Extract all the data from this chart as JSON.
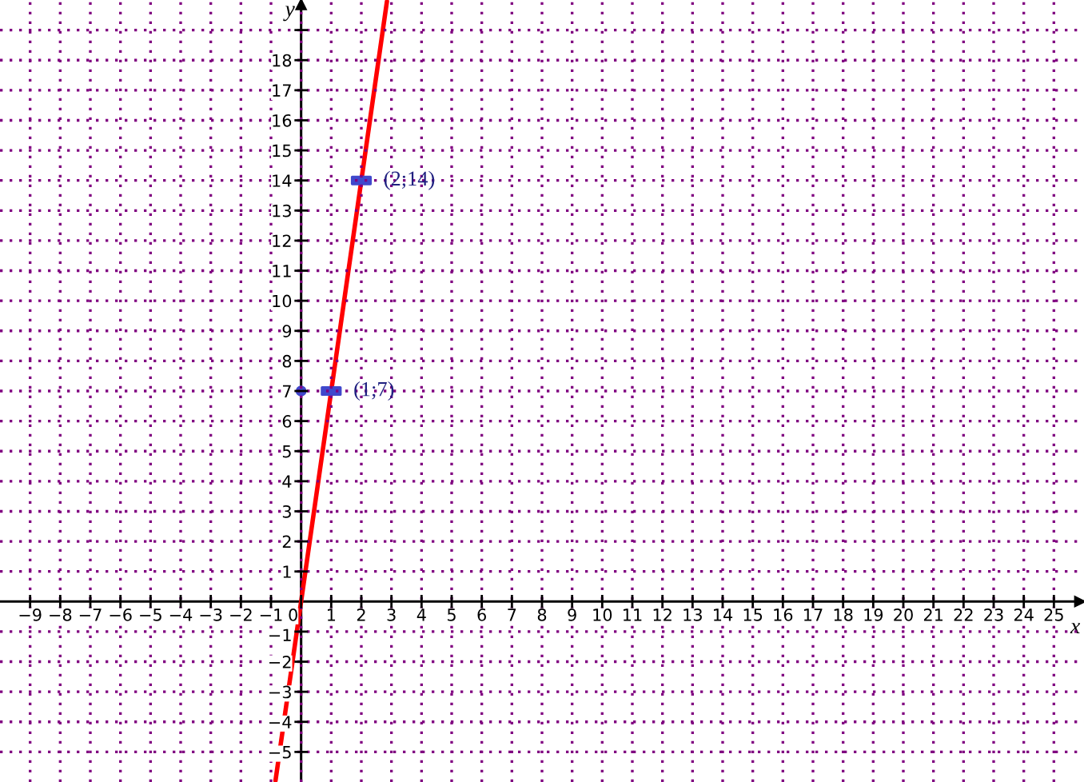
{
  "chart_data": {
    "type": "line",
    "xlabel": "x",
    "ylabel": "y",
    "xlim": [
      -10,
      26
    ],
    "ylim": [
      -6,
      20
    ],
    "xticks": [
      {
        "value": -9,
        "label": "−9"
      },
      {
        "value": -8,
        "label": "−8"
      },
      {
        "value": -7,
        "label": "−7"
      },
      {
        "value": -6,
        "label": "−6"
      },
      {
        "value": -5,
        "label": "−5"
      },
      {
        "value": -4,
        "label": "−4"
      },
      {
        "value": -3,
        "label": "−3"
      },
      {
        "value": -2,
        "label": "−2"
      },
      {
        "value": -1,
        "label": "−1"
      },
      0,
      1,
      2,
      3,
      4,
      5,
      6,
      7,
      8,
      9,
      10,
      11,
      12,
      13,
      14,
      15,
      16,
      17,
      18,
      19,
      20,
      21,
      22,
      23,
      24,
      25
    ],
    "yticks": [
      {
        "value": -5,
        "label": "−5"
      },
      {
        "value": -4,
        "label": "−4"
      },
      {
        "value": -3,
        "label": "−3"
      },
      {
        "value": -2,
        "label": "−2"
      },
      {
        "value": -1,
        "label": "−1"
      },
      1,
      2,
      3,
      4,
      5,
      6,
      7,
      8,
      9,
      10,
      11,
      12,
      13,
      14,
      15,
      16,
      17,
      18,
      {
        "value": 19,
        "label": null
      }
    ],
    "grid": true,
    "series": [
      {
        "color": "#ff0000",
        "x": [
          -0.85,
          2.85
        ],
        "values": [
          -5.95,
          19.95
        ]
      },
      {
        "type": "scatter",
        "color": "#4048cc",
        "marker": "square",
        "x": [
          1,
          2
        ],
        "values": [
          7,
          14
        ]
      },
      {
        "type": "scatter",
        "color": "#4048cc",
        "marker": "circle",
        "x": [
          0
        ],
        "values": [
          7
        ]
      }
    ],
    "annotations": [
      {
        "text": "(1;7)",
        "x": 1,
        "y": 7
      },
      {
        "text": "(2;14)",
        "x": 2,
        "y": 14
      }
    ]
  }
}
